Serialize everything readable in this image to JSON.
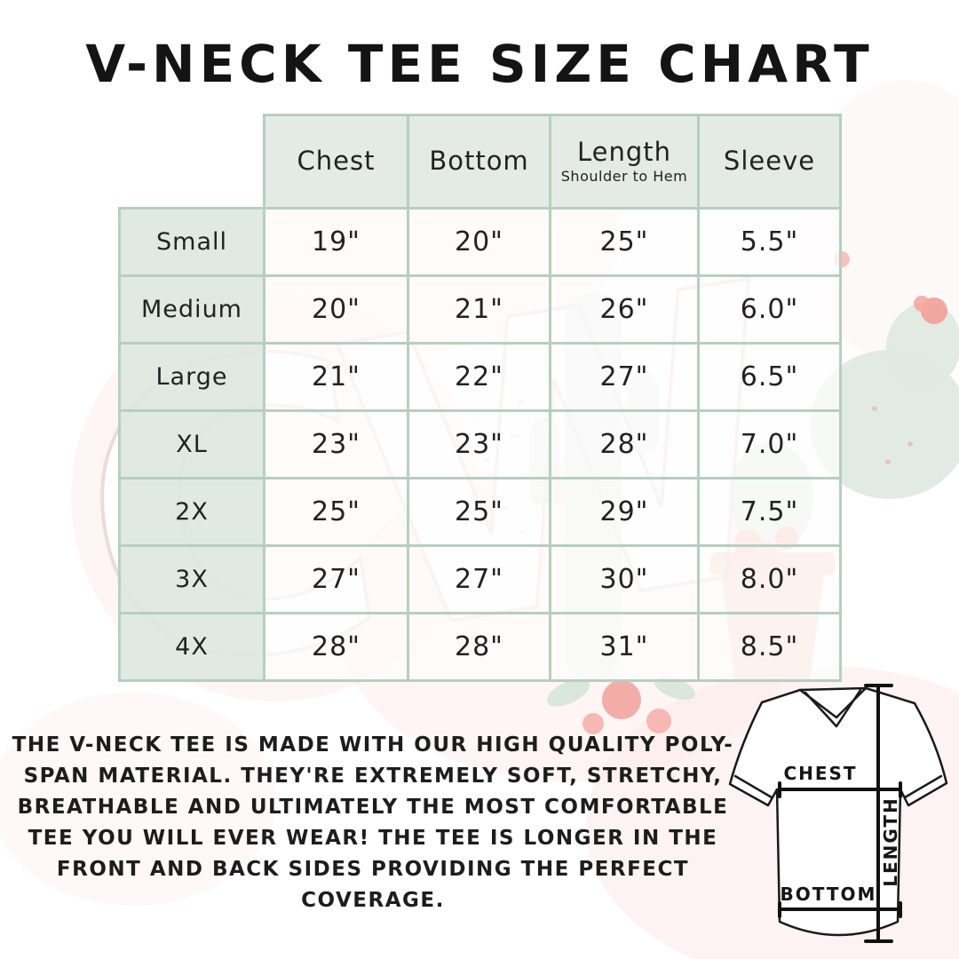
{
  "title": "V-NECK TEE SIZE CHART",
  "watermark": {
    "text": "CW"
  },
  "chart_data": {
    "type": "table",
    "title": "V-NECK TEE SIZE CHART",
    "columns": [
      {
        "label": "Chest"
      },
      {
        "label": "Bottom"
      },
      {
        "label": "Length",
        "sub": "Shoulder to Hem"
      },
      {
        "label": "Sleeve"
      }
    ],
    "rows": [
      {
        "size": "Small",
        "values": [
          "19\"",
          "20\"",
          "25\"",
          "5.5\""
        ]
      },
      {
        "size": "Medium",
        "values": [
          "20\"",
          "21\"",
          "26\"",
          "6.0\""
        ]
      },
      {
        "size": "Large",
        "values": [
          "21\"",
          "22\"",
          "27\"",
          "6.5\""
        ]
      },
      {
        "size": "XL",
        "values": [
          "23\"",
          "23\"",
          "28\"",
          "7.0\""
        ]
      },
      {
        "size": "2X",
        "values": [
          "25\"",
          "25\"",
          "29\"",
          "7.5\""
        ]
      },
      {
        "size": "3X",
        "values": [
          "27\"",
          "27\"",
          "30\"",
          "8.0\""
        ]
      },
      {
        "size": "4X",
        "values": [
          "28\"",
          "28\"",
          "31\"",
          "8.5\""
        ]
      }
    ]
  },
  "description": "THE V-NECK TEE IS MADE WITH OUR HIGH QUALITY POLY-SPAN MATERIAL. THEY'RE EXTREMELY SOFT, STRETCHY, BREATHABLE AND ULTIMATELY THE MOST COMFORTABLE TEE YOU WILL EVER WEAR! THE TEE IS LONGER IN THE FRONT AND BACK SIDES PROVIDING THE PERFECT COVERAGE.",
  "diagram": {
    "chest_label": "CHEST",
    "bottom_label": "BOTTOM",
    "length_label": "LENGTH"
  },
  "colors": {
    "table_border": "#b7cec1",
    "header_bg": "#e2eae4",
    "size_col_bg": "#dfe8e1",
    "text": "#1e1e1e",
    "cactus_green": "#dfeae1",
    "flower_pink": "#f49f98",
    "wash_pink": "#fce9e7",
    "pot_terracotta": "#f0cabc"
  }
}
